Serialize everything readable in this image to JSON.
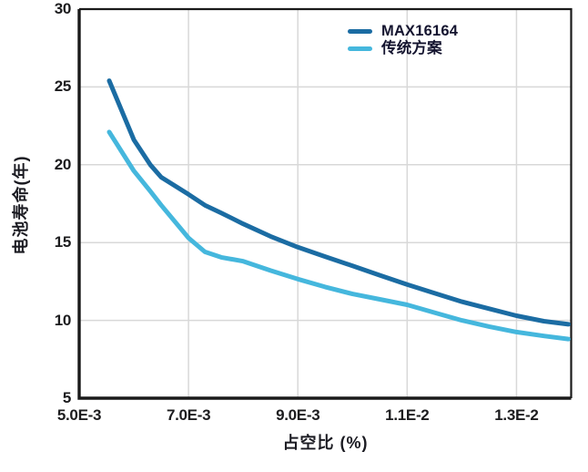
{
  "window": {
    "background": "#ffffff"
  },
  "chart_data": {
    "type": "line",
    "title": "",
    "xlabel": "占空比 (%)",
    "ylabel": "电池寿命(年)",
    "xlim": [
      0.005,
      0.014
    ],
    "ylim": [
      5,
      30
    ],
    "grid": true,
    "grid_color": "#d8d8d8",
    "axis_color": "#1a1a1a",
    "tick_label_color": "#1c1c1e",
    "legend_position": "top-inside",
    "x_ticks": [
      {
        "value": 0.005,
        "label": "5.0E-3"
      },
      {
        "value": 0.007,
        "label": "7.0E-3"
      },
      {
        "value": 0.009,
        "label": "9.0E-3"
      },
      {
        "value": 0.011,
        "label": "1.1E-2"
      },
      {
        "value": 0.013,
        "label": "1.3E-2"
      }
    ],
    "y_ticks": [
      {
        "value": 30,
        "label": "30"
      },
      {
        "value": 25,
        "label": "25"
      },
      {
        "value": 20,
        "label": "20"
      },
      {
        "value": 15,
        "label": "15"
      },
      {
        "value": 10,
        "label": "10"
      },
      {
        "value": 5,
        "label": "5"
      }
    ],
    "series": [
      {
        "name": "MAX16164",
        "color": "#1b6ca3",
        "x": [
          0.00555,
          0.006,
          0.0063,
          0.0065,
          0.007,
          0.0073,
          0.0076,
          0.008,
          0.0085,
          0.009,
          0.0095,
          0.01,
          0.0105,
          0.011,
          0.0115,
          0.012,
          0.0125,
          0.013,
          0.0135,
          0.01395
        ],
        "y": [
          25.4,
          21.6,
          20.0,
          19.2,
          18.1,
          17.4,
          16.9,
          16.2,
          15.4,
          14.7,
          14.1,
          13.5,
          12.9,
          12.3,
          11.75,
          11.2,
          10.75,
          10.3,
          9.95,
          9.75
        ]
      },
      {
        "name": "传统方案",
        "color": "#45b7dd",
        "x": [
          0.00555,
          0.006,
          0.0063,
          0.0065,
          0.007,
          0.0073,
          0.0076,
          0.008,
          0.0085,
          0.009,
          0.0095,
          0.01,
          0.0105,
          0.011,
          0.0115,
          0.012,
          0.0125,
          0.013,
          0.0135,
          0.01395
        ],
        "y": [
          22.1,
          19.6,
          18.3,
          17.4,
          15.3,
          14.4,
          14.05,
          13.8,
          13.2,
          12.65,
          12.15,
          11.7,
          11.35,
          11.0,
          10.5,
          10.0,
          9.6,
          9.25,
          9.0,
          8.8
        ]
      }
    ]
  }
}
